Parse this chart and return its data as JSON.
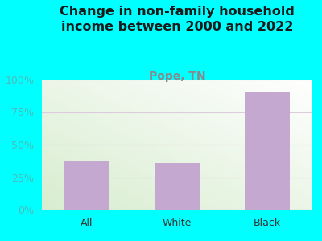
{
  "title": "Change in non-family household\nincome between 2000 and 2022",
  "subtitle": "Pope, TN",
  "categories": [
    "All",
    "White",
    "Black"
  ],
  "values": [
    37,
    36,
    91
  ],
  "bar_color": "#C4A8D0",
  "title_fontsize": 11.5,
  "subtitle_fontsize": 10,
  "subtitle_color": "#888888",
  "title_color": "#1a1a1a",
  "background_color": "#00FFFF",
  "plot_bg_top_left": "#D8EDD0",
  "plot_bg_top_right": "#F0F5EE",
  "plot_bg_bottom_right": "#FFFFFF",
  "ylim": [
    0,
    100
  ],
  "yticks": [
    0,
    25,
    50,
    75,
    100
  ],
  "ytick_labels": [
    "0%",
    "25%",
    "50%",
    "75%",
    "100%"
  ],
  "tick_color": "#4DBBBB",
  "axis_label_fontsize": 9,
  "bar_width": 0.5,
  "grid_color": "#DDCCDD"
}
